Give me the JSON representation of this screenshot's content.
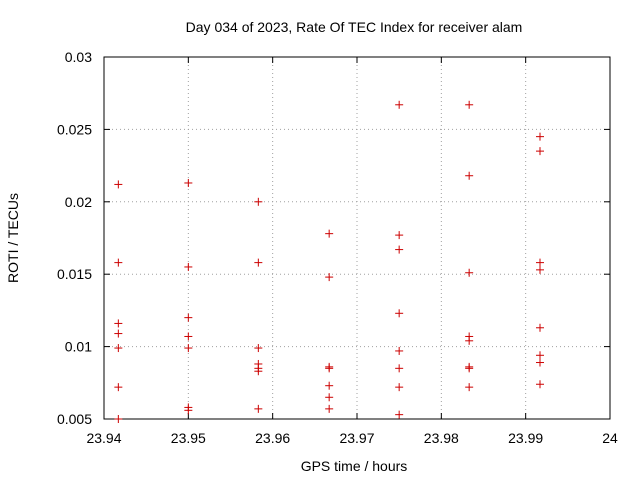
{
  "chart_data": {
    "type": "scatter",
    "title": "Day 034 of 2023, Rate Of TEC Index for receiver alam",
    "xlabel": "GPS time / hours",
    "ylabel": "ROTI / TECUs",
    "xlim": [
      23.94,
      24.0
    ],
    "ylim": [
      0.005,
      0.03
    ],
    "xticks": [
      23.94,
      23.95,
      23.96,
      23.97,
      23.98,
      23.99,
      24.0
    ],
    "xtick_labels": [
      "23.94",
      "23.95",
      "23.96",
      "23.97",
      "23.98",
      "23.99",
      "24"
    ],
    "yticks": [
      0.005,
      0.01,
      0.015,
      0.02,
      0.025,
      0.03
    ],
    "ytick_labels": [
      "0.005",
      "0.01",
      "0.015",
      "0.02",
      "0.025",
      "0.03"
    ],
    "grid": true,
    "marker": "+",
    "marker_color": "#cc0000",
    "series": [
      {
        "name": "ROTI",
        "points": [
          [
            23.9417,
            0.0212
          ],
          [
            23.9417,
            0.0158
          ],
          [
            23.9417,
            0.0116
          ],
          [
            23.9417,
            0.0109
          ],
          [
            23.9417,
            0.0099
          ],
          [
            23.9417,
            0.0072
          ],
          [
            23.9417,
            0.005
          ],
          [
            23.95,
            0.0213
          ],
          [
            23.95,
            0.0155
          ],
          [
            23.95,
            0.012
          ],
          [
            23.95,
            0.0107
          ],
          [
            23.95,
            0.0099
          ],
          [
            23.95,
            0.0058
          ],
          [
            23.95,
            0.0056
          ],
          [
            23.9583,
            0.02
          ],
          [
            23.9583,
            0.0158
          ],
          [
            23.9583,
            0.0099
          ],
          [
            23.9583,
            0.0088
          ],
          [
            23.9583,
            0.0085
          ],
          [
            23.9583,
            0.0083
          ],
          [
            23.9583,
            0.0057
          ],
          [
            23.9667,
            0.0178
          ],
          [
            23.9667,
            0.0148
          ],
          [
            23.9667,
            0.0086
          ],
          [
            23.9667,
            0.0085
          ],
          [
            23.9667,
            0.0073
          ],
          [
            23.9667,
            0.0065
          ],
          [
            23.9667,
            0.0057
          ],
          [
            23.975,
            0.0267
          ],
          [
            23.975,
            0.0177
          ],
          [
            23.975,
            0.0167
          ],
          [
            23.975,
            0.0123
          ],
          [
            23.975,
            0.0097
          ],
          [
            23.975,
            0.0085
          ],
          [
            23.975,
            0.0072
          ],
          [
            23.975,
            0.0053
          ],
          [
            23.9833,
            0.0267
          ],
          [
            23.9833,
            0.0218
          ],
          [
            23.9833,
            0.0151
          ],
          [
            23.9833,
            0.0107
          ],
          [
            23.9833,
            0.0104
          ],
          [
            23.9833,
            0.0086
          ],
          [
            23.9833,
            0.0085
          ],
          [
            23.9833,
            0.0072
          ],
          [
            23.9917,
            0.0245
          ],
          [
            23.9917,
            0.0235
          ],
          [
            23.9917,
            0.0158
          ],
          [
            23.9917,
            0.0153
          ],
          [
            23.9917,
            0.0113
          ],
          [
            23.9917,
            0.0094
          ],
          [
            23.9917,
            0.0089
          ],
          [
            23.9917,
            0.0074
          ]
        ]
      }
    ]
  }
}
